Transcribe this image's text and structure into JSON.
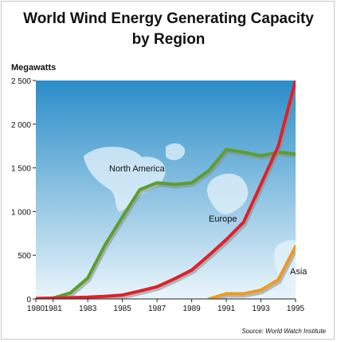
{
  "chart_data": {
    "type": "line",
    "title_line1": "World Wind Energy Generating Capacity",
    "title_line2": "by Region",
    "ylabel": "Megawatts",
    "ylim": [
      0,
      2500
    ],
    "xlim": [
      1980,
      1995
    ],
    "grid": false,
    "yticks": [
      {
        "value": 0,
        "label": "0"
      },
      {
        "value": 500,
        "label": "500"
      },
      {
        "value": 1000,
        "label": "1 000"
      },
      {
        "value": 1500,
        "label": "1 500"
      },
      {
        "value": 2000,
        "label": "2 000"
      },
      {
        "value": 2500,
        "label": "2 500"
      }
    ],
    "xticks": [
      {
        "value": 1980,
        "label": "1980"
      },
      {
        "value": 1981,
        "label": "1981"
      },
      {
        "value": 1983,
        "label": "1983"
      },
      {
        "value": 1985,
        "label": "1985"
      },
      {
        "value": 1987,
        "label": "1987"
      },
      {
        "value": 1989,
        "label": "1989"
      },
      {
        "value": 1991,
        "label": "1991"
      },
      {
        "value": 1993,
        "label": "1993"
      },
      {
        "value": 1995,
        "label": "1995"
      }
    ],
    "series": [
      {
        "name": "North America",
        "color": "#5aa02c",
        "x": [
          1980,
          1981,
          1982,
          1983,
          1984,
          1985,
          1986,
          1987,
          1988,
          1989,
          1990,
          1991,
          1992,
          1993,
          1994,
          1995
        ],
        "y": [
          5,
          10,
          70,
          240,
          620,
          940,
          1250,
          1330,
          1310,
          1330,
          1470,
          1710,
          1680,
          1640,
          1680,
          1660
        ]
      },
      {
        "name": "Europe",
        "color": "#e0202a",
        "x": [
          1980,
          1981,
          1982,
          1983,
          1984,
          1985,
          1986,
          1987,
          1988,
          1989,
          1990,
          1991,
          1992,
          1993,
          1994,
          1995
        ],
        "y": [
          5,
          10,
          15,
          20,
          30,
          45,
          90,
          140,
          230,
          330,
          500,
          680,
          880,
          1310,
          1750,
          2500
        ]
      },
      {
        "name": "Asia",
        "color": "#f09a20",
        "x": [
          1990,
          1991,
          1992,
          1993,
          1994,
          1995
        ],
        "y": [
          0,
          60,
          60,
          100,
          220,
          600
        ]
      }
    ],
    "source": "Source: World Watch Institute"
  },
  "colors": {
    "plot_background_top": "#2a8dc8",
    "plot_background_bottom": "#eaf5fb",
    "map_shapes": "#e6f3fb"
  }
}
